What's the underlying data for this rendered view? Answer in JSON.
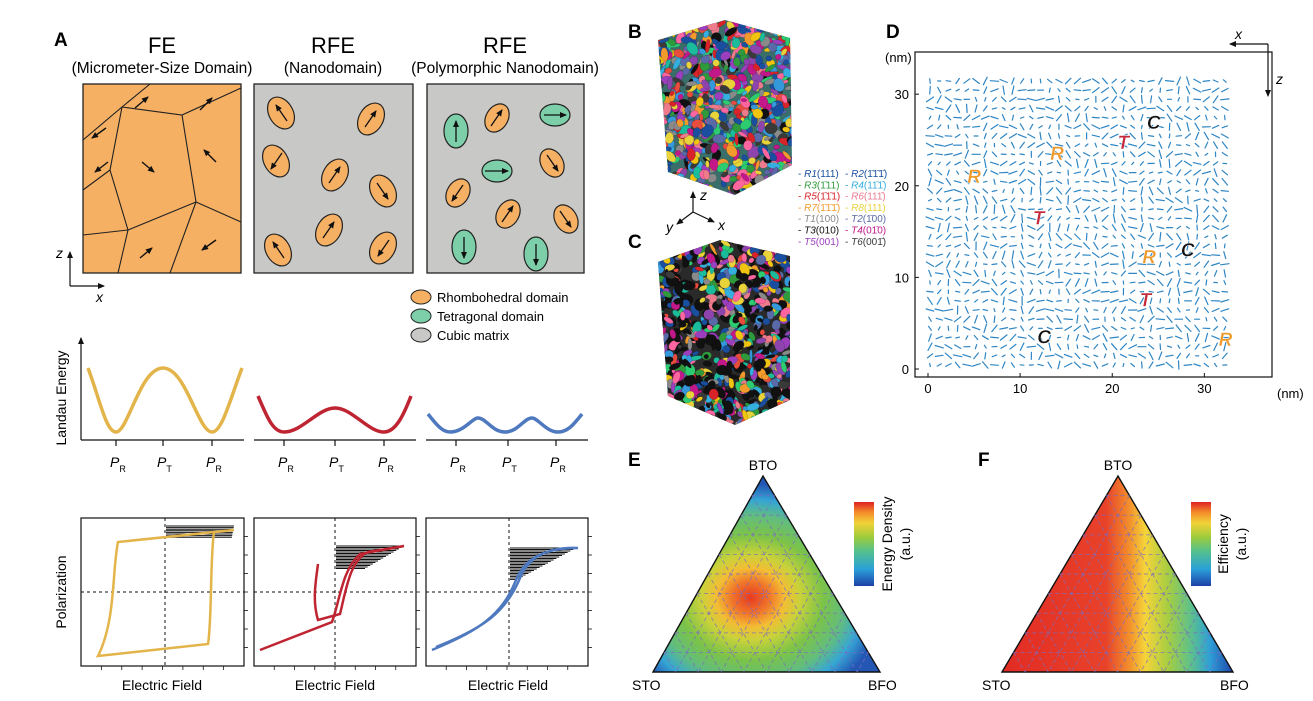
{
  "panel_labels": {
    "a": "A",
    "b": "B",
    "c": "C",
    "d": "D",
    "e": "E",
    "f": "F"
  },
  "panel_a": {
    "titles": [
      {
        "main": "FE",
        "sub": "(Micrometer-Size Domain)"
      },
      {
        "main": "RFE",
        "sub": "(Nanodomain)"
      },
      {
        "main": "RFE",
        "sub": "(Polymorphic Nanodomain)"
      }
    ],
    "axis_z": "z",
    "axis_x": "x",
    "legend": [
      {
        "label": "Rhombohedral domain",
        "color": "#f6b064"
      },
      {
        "label": "Tetragonal domain",
        "color": "#7ccfa8"
      },
      {
        "label": "Cubic matrix",
        "color": "#c8c8c6"
      }
    ],
    "energy_ylabel": "Landau Energy",
    "energy_ticks": [
      "P",
      "P",
      "P"
    ],
    "energy_subs": [
      "R",
      "T",
      "R"
    ],
    "loop_ylabel": "Polarization",
    "loop_xlabel": "Electric Field",
    "curve_colors": [
      "#e3b44a",
      "#be2431",
      "#4f79bf"
    ]
  },
  "panel_b": {
    "axes": [
      "z",
      "y",
      "x"
    ]
  },
  "variants": [
    {
      "n": "R1",
      "d": "(111)",
      "c": "#1a4fa0"
    },
    {
      "n": "R2",
      "d": "(1̄1̄1̄)",
      "c": "#1a4fa0"
    },
    {
      "n": "R3",
      "d": "(1̄11)",
      "c": "#2e9a3c"
    },
    {
      "n": "R4",
      "d": "(11̄1̄)",
      "c": "#35aee0"
    },
    {
      "n": "R5",
      "d": "(1̄1̄1)",
      "c": "#d8232a"
    },
    {
      "n": "R6",
      "d": "(111̄)",
      "c": "#ee7b8c"
    },
    {
      "n": "R7",
      "d": "(1̄1̄1̄)",
      "c": "#f39a2d"
    },
    {
      "n": "R8",
      "d": "(111)",
      "c": "#e8d33a"
    },
    {
      "n": "T1",
      "d": "(100)",
      "c": "#8a8a8a"
    },
    {
      "n": "T2",
      "d": "(1̄00)",
      "c": "#5a6aa8"
    },
    {
      "n": "T3",
      "d": "(010)",
      "c": "#111111"
    },
    {
      "n": "T4",
      "d": "(01̄0)",
      "c": "#c2188a"
    },
    {
      "n": "T5",
      "d": "(001)",
      "c": "#9b3fbf"
    },
    {
      "n": "T6",
      "d": "(001̄)",
      "c": "#3a3a3a"
    }
  ],
  "panel_d": {
    "unit": "(nm)",
    "x_ticks": [
      "0",
      "10",
      "20",
      "30"
    ],
    "y_ticks": [
      "0",
      "10",
      "20",
      "30"
    ],
    "axis_x": "x",
    "axis_z": "z",
    "annotations": [
      {
        "t": "R",
        "x": 5,
        "y": 20.3
      },
      {
        "t": "R",
        "x": 14,
        "y": 22.8
      },
      {
        "t": "R",
        "x": 24,
        "y": 11.5
      },
      {
        "t": "R",
        "x": 32.3,
        "y": 2.5
      },
      {
        "t": "T",
        "x": 21.2,
        "y": 24
      },
      {
        "t": "T",
        "x": 12,
        "y": 15.8
      },
      {
        "t": "T",
        "x": 23.6,
        "y": 6.8
      },
      {
        "t": "C",
        "x": 24.5,
        "y": 26.2
      },
      {
        "t": "C",
        "x": 28.2,
        "y": 12.3
      },
      {
        "t": "C",
        "x": 12.6,
        "y": 2.8
      }
    ]
  },
  "panel_e": {
    "top": "BTO",
    "left": "STO",
    "right": "BFO",
    "colorbar": "Energy Density",
    "unit": "(a.u.)"
  },
  "panel_f": {
    "top": "BTO",
    "left": "STO",
    "right": "BFO",
    "colorbar": "Efficiency",
    "unit": "(a.u.)"
  }
}
